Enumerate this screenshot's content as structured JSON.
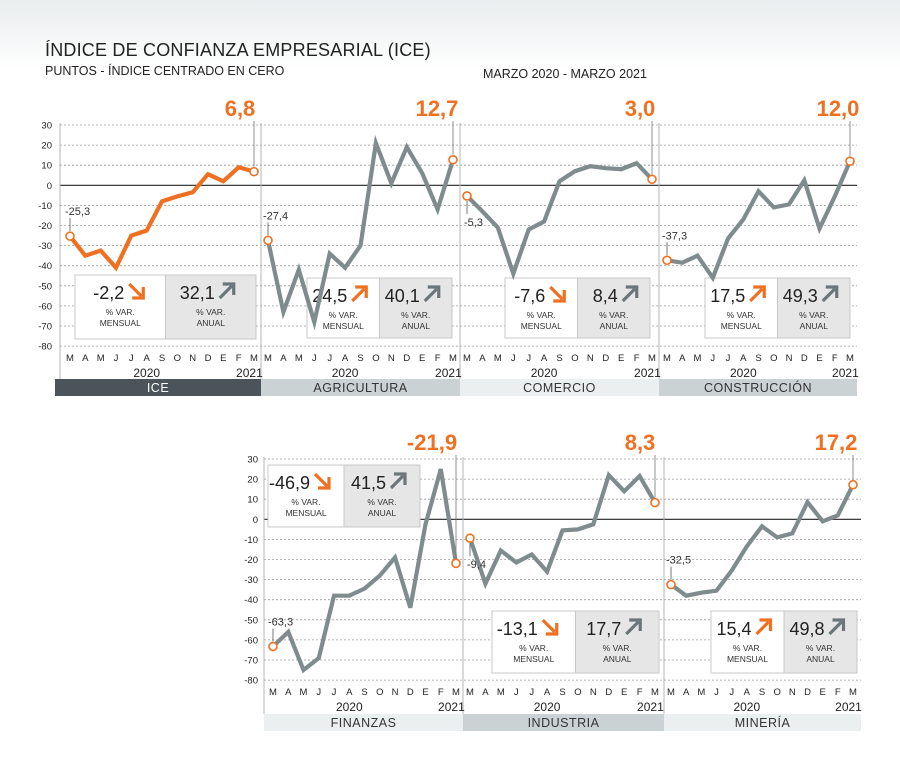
{
  "header": {
    "title": "ÍNDICE DE CONFIANZA EMPRESARIAL (ICE)",
    "subtitle": "PUNTOS - ÍNDICE CENTRADO EN CERO",
    "period": "MARZO 2020 - MARZO 2021"
  },
  "colors": {
    "accent": "#f07021",
    "series_gray": "#7f8c8e",
    "tab_dark": "#4b545a",
    "tab_mid": "#cad2d3",
    "tab_light": "#eceff0",
    "box_light": "#ffffff",
    "box_shaded": "#e6e6e6"
  },
  "axis": {
    "month_labels": [
      "M",
      "A",
      "M",
      "J",
      "J",
      "A",
      "S",
      "O",
      "N",
      "D",
      "E",
      "F",
      "M"
    ],
    "year_2020": "2020",
    "year_2021": "2021",
    "var_mensual_label": [
      "% VAR.",
      "MENSUAL"
    ],
    "var_anual_label": [
      "% VAR.",
      "ANUAL"
    ]
  },
  "chart_data": [
    {
      "type": "line",
      "name": "ICE",
      "tab_label": "ICE",
      "x": [
        "2020-03",
        "2020-04",
        "2020-05",
        "2020-06",
        "2020-07",
        "2020-08",
        "2020-09",
        "2020-10",
        "2020-11",
        "2020-12",
        "2021-01",
        "2021-02",
        "2021-03"
      ],
      "values": [
        -25.3,
        -35,
        -32.5,
        -41,
        -25,
        -22.5,
        -8,
        -5.5,
        -3.5,
        5.5,
        2,
        9,
        6.8
      ],
      "start_label": "-25,3",
      "end_label": "6,8",
      "var_mensual": "-2,2",
      "var_mensual_trend": "down",
      "var_anual": "32,1",
      "var_anual_trend": "up",
      "y_ticks": [
        30,
        20,
        10,
        0,
        -10,
        -20,
        -30,
        -40,
        -50,
        -60,
        -70,
        -80
      ],
      "ylim": [
        -80,
        30
      ]
    },
    {
      "type": "line",
      "name": "AGRICULTURA",
      "tab_label": "AGRICULTURA",
      "x": [
        "2020-03",
        "2020-04",
        "2020-05",
        "2020-06",
        "2020-07",
        "2020-08",
        "2020-09",
        "2020-10",
        "2020-11",
        "2020-12",
        "2021-01",
        "2021-02",
        "2021-03"
      ],
      "values": [
        -27.4,
        -63,
        -42,
        -68,
        -34,
        -41,
        -30,
        21,
        1,
        19,
        6,
        -12,
        12.7
      ],
      "start_label": "-27,4",
      "end_label": "12,7",
      "var_mensual": "24,5",
      "var_mensual_trend": "up",
      "var_anual": "40,1",
      "var_anual_trend": "up",
      "ylim": [
        -80,
        30
      ]
    },
    {
      "type": "line",
      "name": "COMERCIO",
      "tab_label": "COMERCIO",
      "x": [
        "2020-03",
        "2020-04",
        "2020-05",
        "2020-06",
        "2020-07",
        "2020-08",
        "2020-09",
        "2020-10",
        "2020-11",
        "2020-12",
        "2021-01",
        "2021-02",
        "2021-03"
      ],
      "values": [
        -5.3,
        -13,
        -21,
        -44,
        -22,
        -18,
        2,
        7,
        9.5,
        8.5,
        8,
        11,
        3.0
      ],
      "start_label": "-5,3",
      "end_label": "3,0",
      "var_mensual": "-7,6",
      "var_mensual_trend": "down",
      "var_anual": "8,4",
      "var_anual_trend": "up",
      "ylim": [
        -80,
        30
      ]
    },
    {
      "type": "line",
      "name": "CONSTRUCCIÓN",
      "tab_label": "CONSTRUCCIÓN",
      "x": [
        "2020-03",
        "2020-04",
        "2020-05",
        "2020-06",
        "2020-07",
        "2020-08",
        "2020-09",
        "2020-10",
        "2020-11",
        "2020-12",
        "2021-01",
        "2021-02",
        "2021-03"
      ],
      "values": [
        -37.3,
        -38.5,
        -35,
        -46,
        -26.5,
        -17,
        -3,
        -11,
        -9.5,
        2.5,
        -21.5,
        -5.5,
        12.0
      ],
      "start_label": "-37,3",
      "end_label": "12,0",
      "var_mensual": "17,5",
      "var_mensual_trend": "up",
      "var_anual": "49,3",
      "var_anual_trend": "up",
      "ylim": [
        -80,
        30
      ]
    },
    {
      "type": "line",
      "name": "FINANZAS",
      "tab_label": "FINANZAS",
      "x": [
        "2020-03",
        "2020-04",
        "2020-05",
        "2020-06",
        "2020-07",
        "2020-08",
        "2020-09",
        "2020-10",
        "2020-11",
        "2020-12",
        "2021-01",
        "2021-02",
        "2021-03"
      ],
      "values": [
        -63.3,
        -56,
        -75,
        -69,
        -38,
        -38,
        -34.5,
        -28,
        -19,
        -44,
        -2.5,
        25,
        -21.9
      ],
      "start_label": "-63,3",
      "end_label": "-21,9",
      "var_mensual": "-46,9",
      "var_mensual_trend": "down",
      "var_anual": "41,5",
      "var_anual_trend": "up",
      "y_ticks": [
        30,
        20,
        10,
        0,
        -10,
        -20,
        -30,
        -40,
        -50,
        -60,
        -70,
        -80
      ],
      "ylim": [
        -80,
        30
      ]
    },
    {
      "type": "line",
      "name": "INDUSTRIA",
      "tab_label": "INDUSTRIA",
      "x": [
        "2020-03",
        "2020-04",
        "2020-05",
        "2020-06",
        "2020-07",
        "2020-08",
        "2020-09",
        "2020-10",
        "2020-11",
        "2020-12",
        "2021-01",
        "2021-02",
        "2021-03"
      ],
      "values": [
        -9.4,
        -32,
        -15.5,
        -21.5,
        -17.5,
        -26,
        -5.5,
        -5,
        -2.5,
        22,
        14,
        21.5,
        8.3
      ],
      "start_label": "-9,4",
      "end_label": "8,3",
      "var_mensual": "-13,1",
      "var_mensual_trend": "down",
      "var_anual": "17,7",
      "var_anual_trend": "up",
      "ylim": [
        -80,
        30
      ]
    },
    {
      "type": "line",
      "name": "MINERÍA",
      "tab_label": "MINERÍA",
      "x": [
        "2020-03",
        "2020-04",
        "2020-05",
        "2020-06",
        "2020-07",
        "2020-08",
        "2020-09",
        "2020-10",
        "2020-11",
        "2020-12",
        "2021-01",
        "2021-02",
        "2021-03"
      ],
      "values": [
        -32.5,
        -38,
        -36.5,
        -35.5,
        -25.5,
        -13.5,
        -3.5,
        -9,
        -7,
        8.5,
        -1,
        2,
        17.2
      ],
      "start_label": "-32,5",
      "end_label": "17,2",
      "var_mensual": "15,4",
      "var_mensual_trend": "up",
      "var_anual": "49,8",
      "var_anual_trend": "up",
      "ylim": [
        -80,
        30
      ]
    }
  ]
}
